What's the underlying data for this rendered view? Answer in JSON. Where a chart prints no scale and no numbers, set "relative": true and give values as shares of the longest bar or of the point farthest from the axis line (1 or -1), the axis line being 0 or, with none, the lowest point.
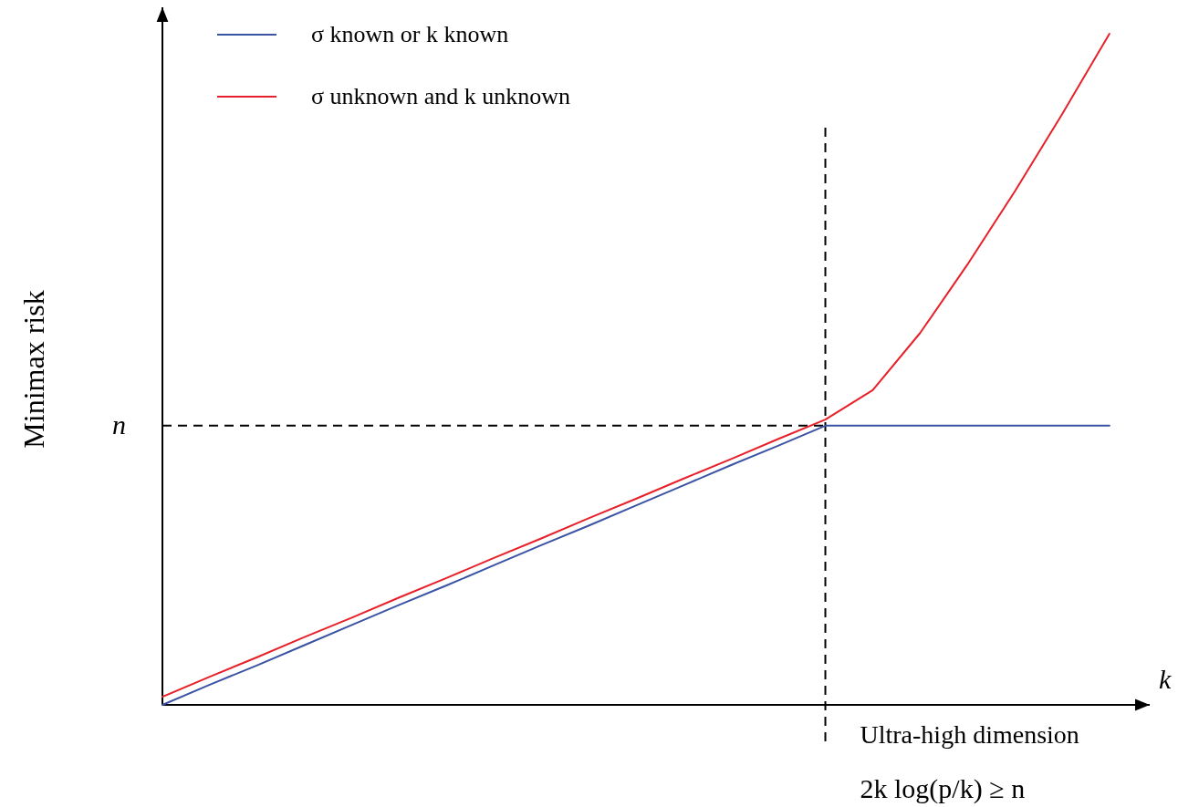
{
  "chart_data": {
    "type": "line",
    "relative": true,
    "ylabel": "Minimax risk",
    "xlabel": "k",
    "categories": [
      null,
      null,
      null,
      null,
      null,
      null,
      null,
      null,
      null,
      null,
      null,
      null,
      null,
      null,
      null,
      null,
      null,
      null,
      null,
      null,
      null
    ],
    "series": [
      {
        "name": "σ known or k known",
        "color": "#3a53a4",
        "values": [
          0,
          0.03,
          0.059,
          0.089,
          0.119,
          0.149,
          0.178,
          0.208,
          0.238,
          0.267,
          0.297,
          0.327,
          0.357,
          0.386,
          0.416,
          0.416,
          0.416,
          0.416,
          0.416,
          0.416,
          0.416
        ]
      },
      {
        "name": "σ unknown and k unknown",
        "color": "#e8202a",
        "values": [
          0.012,
          0.042,
          0.071,
          0.101,
          0.13,
          0.16,
          0.189,
          0.219,
          0.248,
          0.278,
          0.307,
          0.337,
          0.366,
          0.396,
          0.425,
          0.469,
          0.554,
          0.656,
          0.765,
          0.88,
          1
        ]
      }
    ],
    "ref_lines": [
      {
        "axis": "y",
        "value": 0.416,
        "label": "n",
        "line_style": "dashed",
        "color": "#000000"
      }
    ],
    "annotations": [
      "Ultra-high dimension",
      "2k log(p/k) ≥ n"
    ],
    "legend": "top left",
    "marker": "none",
    "line_style": "solid"
  }
}
